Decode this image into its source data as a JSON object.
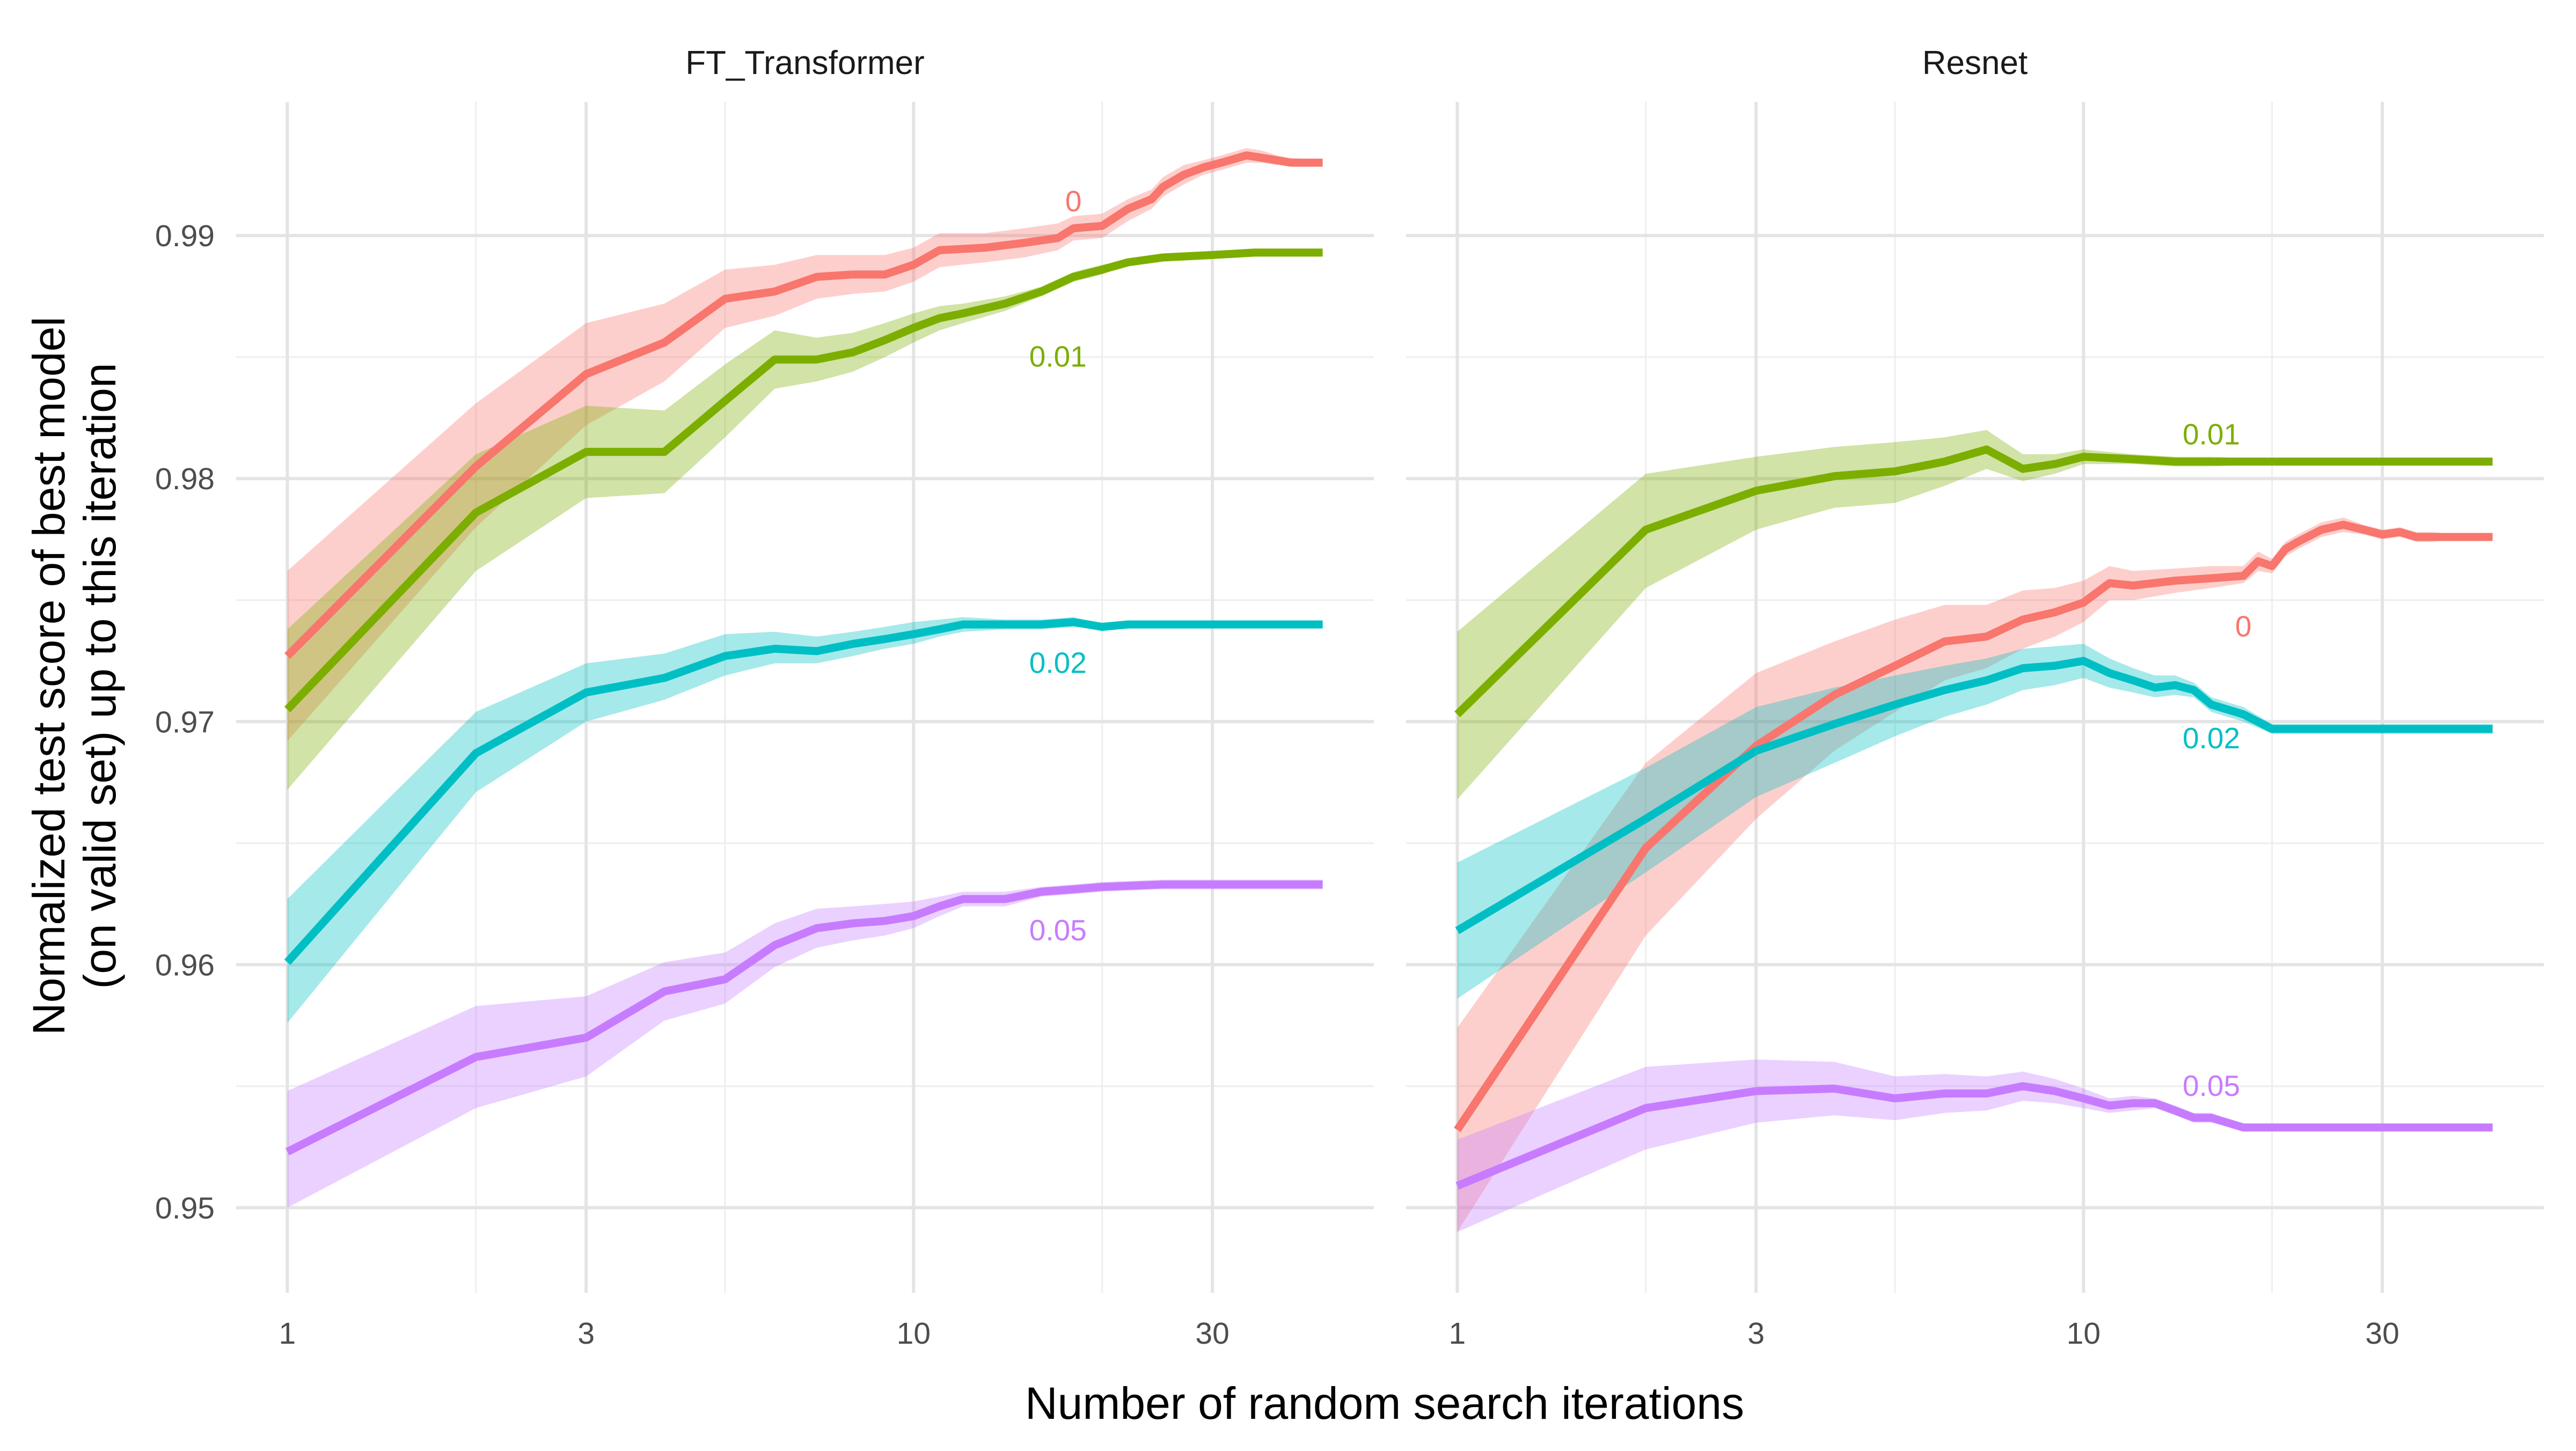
{
  "chart_data": {
    "type": "line",
    "xlabel": "Number of random search iterations",
    "ylabel": "Normalized test score of best model (on valid set) up to this iteration",
    "ylabel_lines": [
      "Normalized test score of best model",
      "(on valid set) up to this iteration"
    ],
    "x_scale": "log10",
    "xlim": [
      1,
      45
    ],
    "ylim": [
      0.9465,
      0.9955
    ],
    "x_ticks": [
      1,
      3,
      10,
      30
    ],
    "x_tick_labels": [
      "1",
      "3",
      "10",
      "30"
    ],
    "y_ticks": [
      0.95,
      0.96,
      0.97,
      0.98,
      0.99
    ],
    "y_tick_labels": [
      "0.95",
      "0.96",
      "0.97",
      "0.98",
      "0.99"
    ],
    "grid": true,
    "legend": "none (direct labels)",
    "colors": {
      "0": "#F8766D",
      "0.01": "#7CAE00",
      "0.02": "#00BFC4",
      "0.05": "#C77CFF"
    },
    "panels": [
      {
        "title": "FT_Transformer",
        "series": [
          {
            "name": "0",
            "color": "#F8766D",
            "label_pos": [
              18,
              0.9914
            ],
            "x": [
              1,
              2,
              3,
              4,
              5,
              6,
              7,
              8,
              9,
              10,
              11,
              13,
              15,
              17,
              18,
              20,
              22,
              24,
              25,
              27,
              29,
              31,
              32,
              34,
              36,
              38,
              40,
              45
            ],
            "y": [
              0.9727,
              0.9805,
              0.9843,
              0.9856,
              0.9874,
              0.9877,
              0.9883,
              0.9884,
              0.9884,
              0.9888,
              0.9894,
              0.9895,
              0.9897,
              0.9899,
              0.9903,
              0.9904,
              0.9911,
              0.9915,
              0.992,
              0.9925,
              0.9928,
              0.993,
              0.9931,
              0.9933,
              0.9932,
              0.9931,
              0.993,
              0.993
            ],
            "lower": [
              0.9692,
              0.978,
              0.9822,
              0.984,
              0.9862,
              0.9867,
              0.9874,
              0.9876,
              0.9877,
              0.9881,
              0.9887,
              0.9889,
              0.9891,
              0.9894,
              0.9898,
              0.9899,
              0.9906,
              0.9911,
              0.9916,
              0.9921,
              0.9925,
              0.9927,
              0.9928,
              0.993,
              0.993,
              0.9929,
              0.9929,
              0.9929
            ],
            "upper": [
              0.9762,
              0.9831,
              0.9864,
              0.9872,
              0.9886,
              0.9888,
              0.9892,
              0.9892,
              0.9892,
              0.9895,
              0.9901,
              0.9901,
              0.9903,
              0.9905,
              0.9908,
              0.9909,
              0.9915,
              0.9919,
              0.9924,
              0.9929,
              0.9931,
              0.9933,
              0.9934,
              0.9936,
              0.9935,
              0.9933,
              0.9932,
              0.9931
            ]
          },
          {
            "name": "0.01",
            "color": "#7CAE00",
            "label_pos": [
              17,
              0.985
            ],
            "x": [
              1,
              2,
              3,
              4,
              5,
              6,
              7,
              8,
              9,
              10,
              11,
              12,
              14,
              16,
              18,
              20,
              22,
              25,
              30,
              35,
              45
            ],
            "y": [
              0.9705,
              0.9786,
              0.9811,
              0.9811,
              0.9832,
              0.9849,
              0.9849,
              0.9852,
              0.9857,
              0.9862,
              0.9866,
              0.9868,
              0.9872,
              0.9877,
              0.9883,
              0.9886,
              0.9889,
              0.9891,
              0.9892,
              0.9893,
              0.9893
            ],
            "lower": [
              0.9672,
              0.9762,
              0.9792,
              0.9794,
              0.9817,
              0.9837,
              0.984,
              0.9844,
              0.985,
              0.9856,
              0.9861,
              0.9864,
              0.9869,
              0.9875,
              0.9881,
              0.9884,
              0.9888,
              0.989,
              0.9891,
              0.9892,
              0.9892
            ],
            "upper": [
              0.9738,
              0.981,
              0.983,
              0.9828,
              0.9847,
              0.9861,
              0.9858,
              0.986,
              0.9864,
              0.9868,
              0.9871,
              0.9872,
              0.9875,
              0.9879,
              0.9885,
              0.9888,
              0.989,
              0.9892,
              0.9893,
              0.9894,
              0.9894
            ]
          },
          {
            "name": "0.02",
            "color": "#00BFC4",
            "label_pos": [
              17,
              0.9724
            ],
            "x": [
              1,
              2,
              3,
              4,
              5,
              6,
              7,
              8,
              9,
              10,
              11,
              12,
              14,
              16,
              18,
              20,
              22,
              24,
              28,
              35,
              45
            ],
            "y": [
              0.9601,
              0.9687,
              0.9712,
              0.9718,
              0.9727,
              0.973,
              0.9729,
              0.9732,
              0.9734,
              0.9736,
              0.9738,
              0.974,
              0.974,
              0.974,
              0.9741,
              0.9739,
              0.974,
              0.974,
              0.974,
              0.974,
              0.974
            ],
            "lower": [
              0.9576,
              0.9671,
              0.97,
              0.9709,
              0.9719,
              0.9724,
              0.9724,
              0.9727,
              0.973,
              0.9732,
              0.9735,
              0.9737,
              0.9738,
              0.9738,
              0.9739,
              0.9738,
              0.9739,
              0.9739,
              0.9739,
              0.9739,
              0.9739
            ],
            "upper": [
              0.9627,
              0.9704,
              0.9724,
              0.9728,
              0.9736,
              0.9737,
              0.9735,
              0.9737,
              0.9739,
              0.9741,
              0.9742,
              0.9743,
              0.9742,
              0.9742,
              0.9743,
              0.974,
              0.9741,
              0.9741,
              0.9741,
              0.9741,
              0.9741
            ]
          },
          {
            "name": "0.05",
            "color": "#C77CFF",
            "label_pos": [
              17,
              0.9614
            ],
            "x": [
              1,
              2,
              3,
              4,
              5,
              6,
              7,
              8,
              9,
              10,
              11,
              12,
              14,
              16,
              18,
              20,
              25,
              30,
              45
            ],
            "y": [
              0.9523,
              0.9562,
              0.957,
              0.9589,
              0.9594,
              0.9608,
              0.9615,
              0.9617,
              0.9618,
              0.962,
              0.9624,
              0.9627,
              0.9627,
              0.963,
              0.9631,
              0.9632,
              0.9633,
              0.9633,
              0.9633
            ],
            "lower": [
              0.95,
              0.9541,
              0.9554,
              0.9577,
              0.9584,
              0.9599,
              0.9607,
              0.961,
              0.9612,
              0.9615,
              0.962,
              0.9624,
              0.9624,
              0.9628,
              0.9629,
              0.963,
              0.9631,
              0.9631,
              0.9631
            ],
            "upper": [
              0.9548,
              0.9583,
              0.9587,
              0.9601,
              0.9605,
              0.9617,
              0.9623,
              0.9624,
              0.9625,
              0.9626,
              0.9628,
              0.963,
              0.963,
              0.9632,
              0.9633,
              0.9634,
              0.9635,
              0.9635,
              0.9635
            ]
          }
        ]
      },
      {
        "title": "Resnet",
        "series": [
          {
            "name": "0.01",
            "color": "#7CAE00",
            "label_pos": [
              16,
              0.9818
            ],
            "x": [
              1,
              2,
              3,
              4,
              5,
              6,
              7,
              8,
              9,
              10,
              12,
              14,
              16,
              20,
              25,
              30,
              45
            ],
            "y": [
              0.9703,
              0.9779,
              0.9795,
              0.9801,
              0.9803,
              0.9807,
              0.9812,
              0.9804,
              0.9806,
              0.9809,
              0.9808,
              0.9807,
              0.9807,
              0.9807,
              0.9807,
              0.9807,
              0.9807
            ],
            "lower": [
              0.9668,
              0.9755,
              0.9779,
              0.9788,
              0.979,
              0.9797,
              0.9804,
              0.9799,
              0.9802,
              0.9806,
              0.9806,
              0.9805,
              0.9805,
              0.9806,
              0.9806,
              0.9806,
              0.9806
            ],
            "upper": [
              0.9737,
              0.9802,
              0.9809,
              0.9813,
              0.9815,
              0.9817,
              0.982,
              0.981,
              0.981,
              0.9812,
              0.981,
              0.9809,
              0.9809,
              0.9808,
              0.9808,
              0.9808,
              0.9808
            ],
            "note": "upper/lower around line"
          },
          {
            "name": "0",
            "color": "#F8766D",
            "label_pos": [
              18,
              0.9739
            ],
            "x": [
              1,
              2,
              3,
              4,
              5,
              6,
              7,
              8,
              9,
              10,
              11,
              12,
              14,
              16,
              18,
              19,
              20,
              21,
              22,
              24,
              26,
              28,
              30,
              32,
              34,
              36,
              40,
              45
            ],
            "y": [
              0.9532,
              0.9648,
              0.969,
              0.9711,
              0.9723,
              0.9733,
              0.9735,
              0.9742,
              0.9745,
              0.9749,
              0.9757,
              0.9756,
              0.9758,
              0.9759,
              0.976,
              0.9766,
              0.9764,
              0.9771,
              0.9774,
              0.9779,
              0.9781,
              0.9779,
              0.9777,
              0.9778,
              0.9776,
              0.9776,
              0.9776,
              0.9776
            ],
            "lower": [
              0.949,
              0.9612,
              0.966,
              0.9688,
              0.9704,
              0.9717,
              0.9722,
              0.973,
              0.9735,
              0.9741,
              0.975,
              0.975,
              0.9753,
              0.9755,
              0.9757,
              0.9762,
              0.9761,
              0.9768,
              0.9771,
              0.9776,
              0.9778,
              0.9777,
              0.9775,
              0.9776,
              0.9774,
              0.9774,
              0.9775,
              0.9775
            ],
            "upper": [
              0.9574,
              0.9683,
              0.972,
              0.9733,
              0.9742,
              0.9748,
              0.9748,
              0.9754,
              0.9755,
              0.9758,
              0.9764,
              0.9762,
              0.9763,
              0.9764,
              0.9764,
              0.977,
              0.9767,
              0.9774,
              0.9777,
              0.9782,
              0.9784,
              0.9781,
              0.9779,
              0.978,
              0.9778,
              0.9778,
              0.9777,
              0.9777
            ]
          },
          {
            "name": "0.02",
            "color": "#00BFC4",
            "label_pos": [
              16,
              0.9693
            ],
            "x": [
              1,
              2,
              3,
              4,
              5,
              6,
              7,
              8,
              9,
              10,
              11,
              12,
              13,
              14,
              15,
              16,
              18,
              20,
              22,
              25,
              30,
              45
            ],
            "y": [
              0.9614,
              0.966,
              0.9688,
              0.9699,
              0.9707,
              0.9713,
              0.9717,
              0.9722,
              0.9723,
              0.9725,
              0.972,
              0.9717,
              0.9714,
              0.9715,
              0.9713,
              0.9707,
              0.9703,
              0.9697,
              0.9697,
              0.9697,
              0.9697,
              0.9697
            ],
            "lower": [
              0.9586,
              0.9638,
              0.9669,
              0.9683,
              0.9694,
              0.9702,
              0.9707,
              0.9713,
              0.9715,
              0.9718,
              0.9714,
              0.9712,
              0.971,
              0.9711,
              0.971,
              0.9704,
              0.97,
              0.9695,
              0.9695,
              0.9695,
              0.9695,
              0.9695
            ],
            "upper": [
              0.9642,
              0.9681,
              0.9706,
              0.9714,
              0.9719,
              0.9723,
              0.9726,
              0.973,
              0.9731,
              0.9732,
              0.9726,
              0.9722,
              0.9719,
              0.9719,
              0.9716,
              0.971,
              0.9706,
              0.9699,
              0.9699,
              0.9699,
              0.9699,
              0.9699
            ]
          },
          {
            "name": "0.05",
            "color": "#C77CFF",
            "label_pos": [
              16,
              0.955
            ],
            "x": [
              1,
              2,
              3,
              4,
              5,
              6,
              7,
              8,
              9,
              10,
              11,
              12,
              13,
              14,
              15,
              16,
              18,
              20,
              25,
              30,
              45
            ],
            "y": [
              0.9509,
              0.9541,
              0.9548,
              0.9549,
              0.9545,
              0.9547,
              0.9547,
              0.955,
              0.9548,
              0.9545,
              0.9542,
              0.9543,
              0.9543,
              0.954,
              0.9537,
              0.9537,
              0.9533,
              0.9533,
              0.9533,
              0.9533,
              0.9533
            ],
            "lower": [
              0.949,
              0.9524,
              0.9535,
              0.9538,
              0.9536,
              0.9539,
              0.954,
              0.9544,
              0.9543,
              0.9541,
              0.9539,
              0.954,
              0.9541,
              0.9538,
              0.9535,
              0.9535,
              0.9532,
              0.9532,
              0.9532,
              0.9532,
              0.9532
            ],
            "upper": [
              0.9528,
              0.9558,
              0.9561,
              0.956,
              0.9554,
              0.9555,
              0.9554,
              0.9556,
              0.9553,
              0.9549,
              0.9545,
              0.9546,
              0.9545,
              0.9542,
              0.9539,
              0.9539,
              0.9534,
              0.9534,
              0.9534,
              0.9534,
              0.9534
            ]
          }
        ]
      }
    ]
  }
}
